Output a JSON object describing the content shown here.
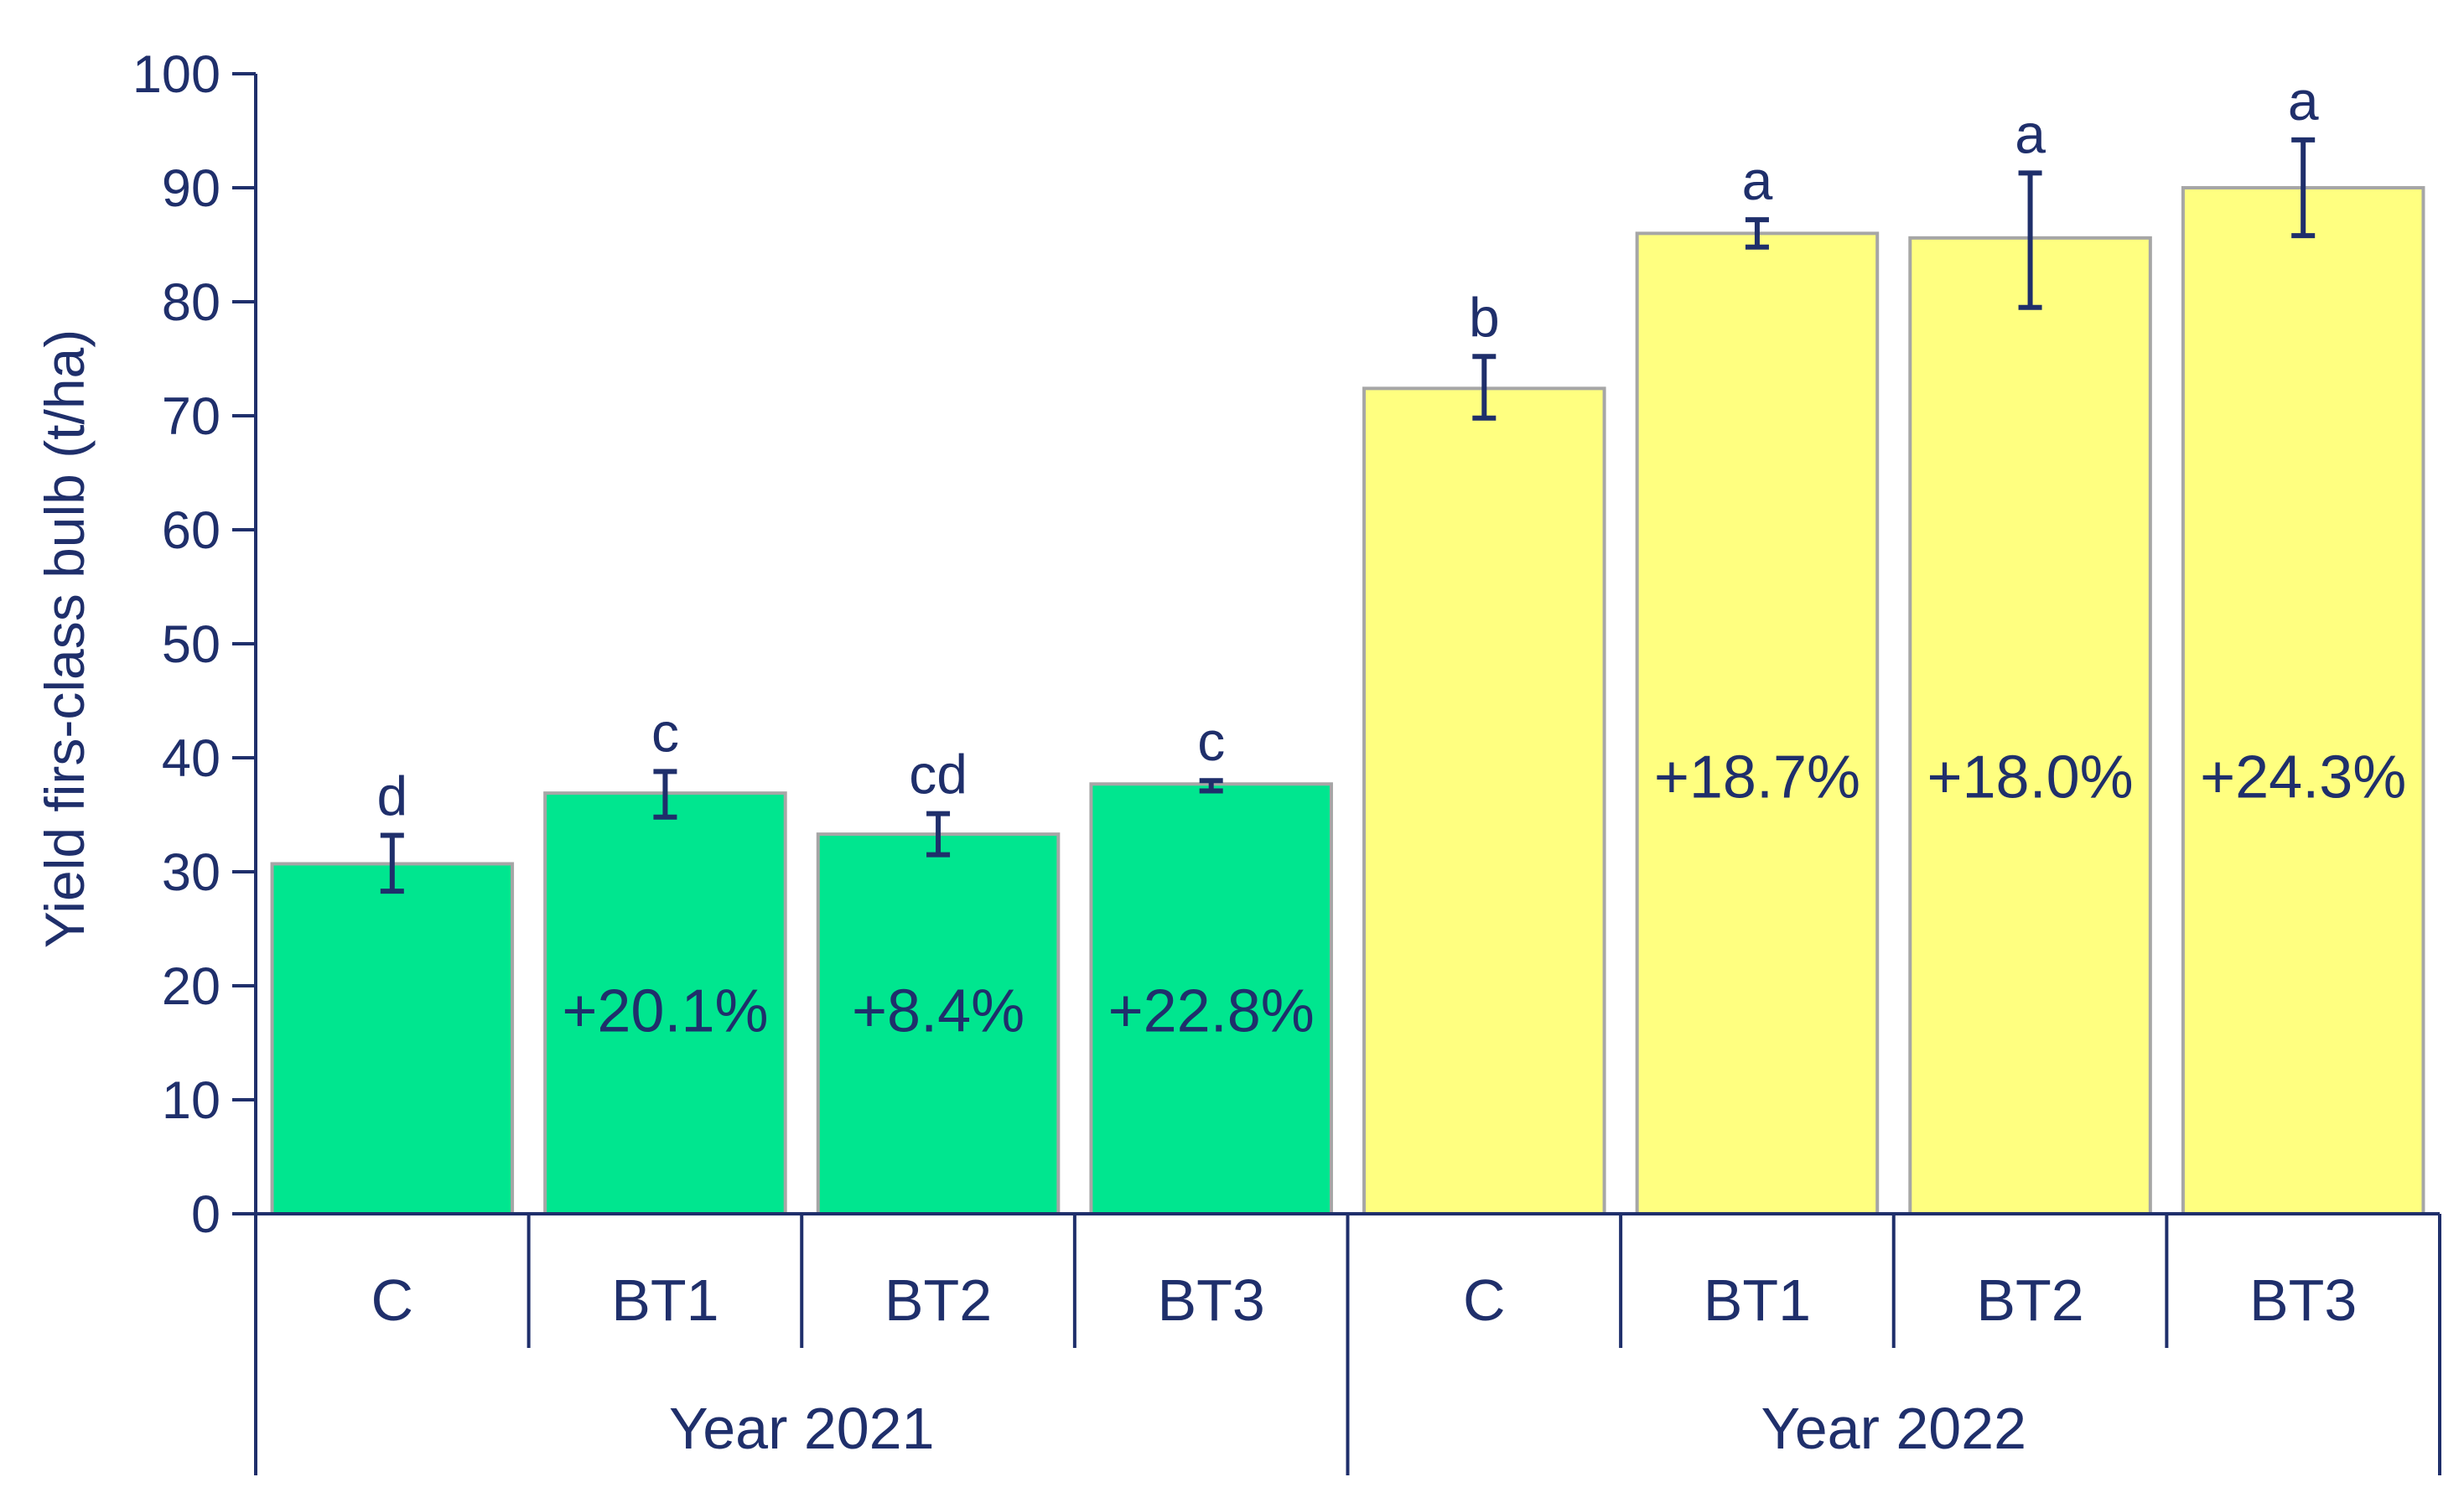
{
  "chart_data": {
    "type": "bar",
    "ylabel": "Yield  firs-class bulb (t/ha)",
    "ylim": [
      0,
      100
    ],
    "yticks": [
      0,
      10,
      20,
      30,
      40,
      50,
      60,
      70,
      80,
      90,
      100
    ],
    "groups": [
      {
        "label": "Year 2021",
        "color": "#00e68f",
        "bars": [
          {
            "category": "C",
            "value": 30.7,
            "err_low": 28.3,
            "err_high": 33.2,
            "letter": "d",
            "pct": ""
          },
          {
            "category": "BT1",
            "value": 36.9,
            "err_low": 34.8,
            "err_high": 38.8,
            "letter": "c",
            "pct": "+20.1%"
          },
          {
            "category": "BT2",
            "value": 33.3,
            "err_low": 31.5,
            "err_high": 35.1,
            "letter": "cd",
            "pct": "+8.4%"
          },
          {
            "category": "BT3",
            "value": 37.7,
            "err_low": 37.1,
            "err_high": 38.0,
            "letter": "c",
            "pct": "+22.8%"
          }
        ]
      },
      {
        "label": "Year 2022",
        "color": "#ffff80",
        "bars": [
          {
            "category": "C",
            "value": 72.4,
            "err_low": 69.8,
            "err_high": 75.2,
            "letter": "b",
            "pct": ""
          },
          {
            "category": "BT1",
            "value": 86.0,
            "err_low": 84.8,
            "err_high": 87.2,
            "letter": "a",
            "pct": "+18.7%"
          },
          {
            "category": "BT2",
            "value": 85.6,
            "err_low": 79.5,
            "err_high": 91.3,
            "letter": "a",
            "pct": "+18.0%"
          },
          {
            "category": "BT3",
            "value": 90.0,
            "err_low": 85.8,
            "err_high": 94.2,
            "letter": "a",
            "pct": "+24.3%"
          }
        ]
      }
    ]
  }
}
